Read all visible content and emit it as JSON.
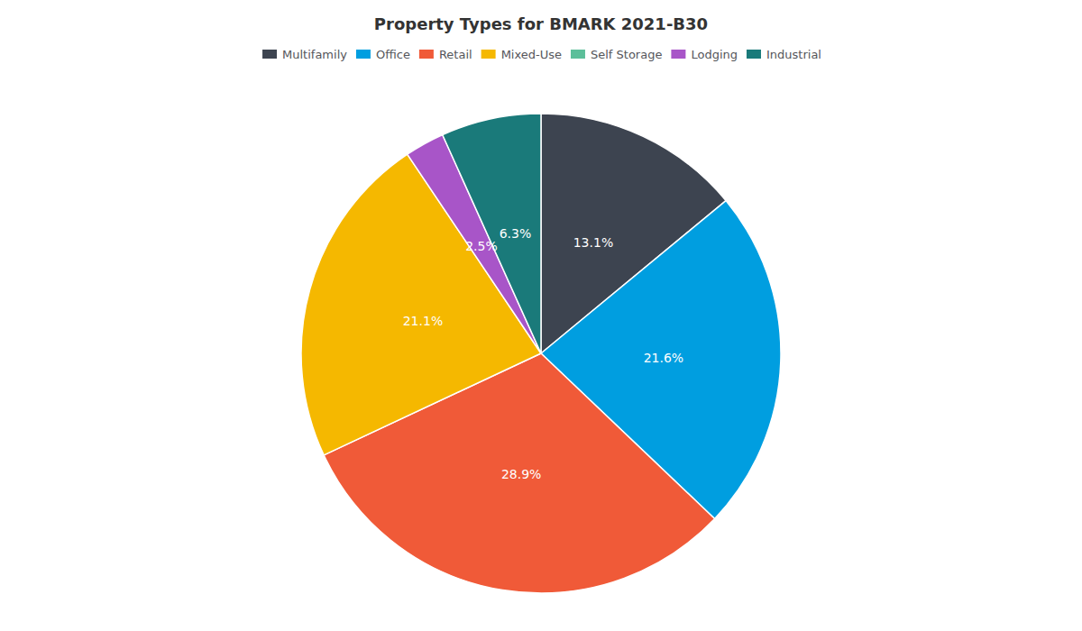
{
  "chart_data": {
    "type": "pie",
    "title": "Property Types for BMARK 2021-B30",
    "categories": [
      "Multifamily",
      "Office",
      "Retail",
      "Mixed-Use",
      "Self Storage",
      "Lodging",
      "Industrial"
    ],
    "values": [
      13.1,
      21.6,
      28.9,
      21.1,
      null,
      2.5,
      6.3
    ],
    "value_labels": [
      "13.1%",
      "21.6%",
      "28.9%",
      "21.1%",
      null,
      "2.5%",
      "6.3%"
    ],
    "colors": [
      "#3d4450",
      "#009ee0",
      "#f05a38",
      "#f5b800",
      "#5cbf9a",
      "#a855c8",
      "#1a7a7a"
    ],
    "data_labels": true,
    "legend": "top"
  }
}
